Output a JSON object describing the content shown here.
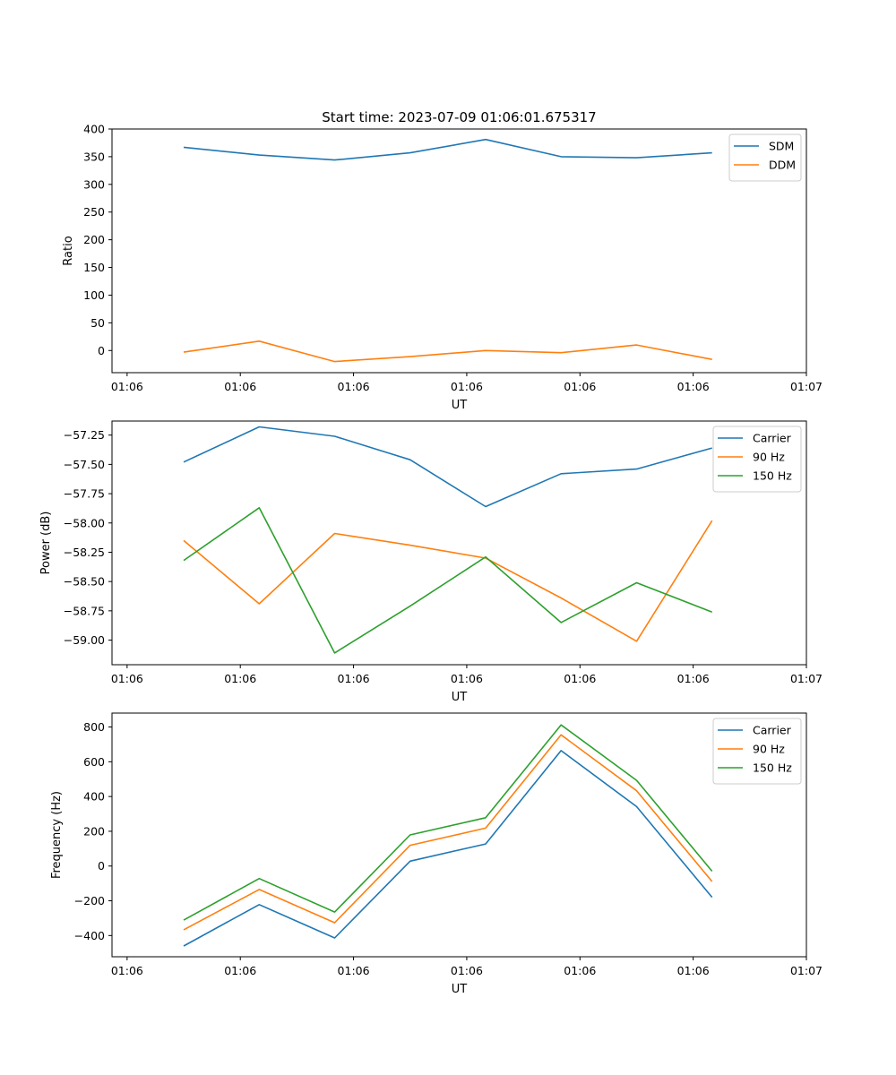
{
  "figure_title": "Start time: 2023-07-09 01:06:01.675317",
  "chart_data": [
    {
      "type": "line",
      "id": "ratio",
      "xlabel": "UT",
      "ylabel": "Ratio",
      "x": [
        0,
        1,
        2,
        3,
        4,
        5,
        6,
        7
      ],
      "x_tick_positions": [
        -0.75,
        0.75,
        2.25,
        3.75,
        5.25,
        6.75,
        8.25
      ],
      "x_tick_labels": [
        "01:06",
        "01:06",
        "01:06",
        "01:06",
        "01:06",
        "01:06",
        "01:07"
      ],
      "xlim": [
        -0.95,
        8.25
      ],
      "ylim": [
        -40,
        400
      ],
      "y_ticks": [
        0,
        50,
        100,
        150,
        200,
        250,
        300,
        350,
        400
      ],
      "y_tick_labels": [
        "0",
        "50",
        "100",
        "150",
        "200",
        "250",
        "300",
        "350",
        "400"
      ],
      "legend_position": "top-right",
      "series": [
        {
          "name": "SDM",
          "color": "#1f77b4",
          "values": [
            367,
            353,
            344,
            357,
            381,
            350,
            348,
            357
          ]
        },
        {
          "name": "DDM",
          "color": "#ff7f0e",
          "values": [
            -3,
            17,
            -20,
            -11,
            0,
            -4,
            10,
            -16
          ]
        }
      ]
    },
    {
      "type": "line",
      "id": "power",
      "xlabel": "UT",
      "ylabel": "Power (dB)",
      "x": [
        0,
        1,
        2,
        3,
        4,
        5,
        6,
        7
      ],
      "x_tick_positions": [
        -0.75,
        0.75,
        2.25,
        3.75,
        5.25,
        6.75,
        8.25
      ],
      "x_tick_labels": [
        "01:06",
        "01:06",
        "01:06",
        "01:06",
        "01:06",
        "01:06",
        "01:07"
      ],
      "xlim": [
        -0.95,
        8.25
      ],
      "ylim": [
        -59.21,
        -57.13
      ],
      "y_ticks": [
        -57.25,
        -57.5,
        -57.75,
        -58.0,
        -58.25,
        -58.5,
        -58.75,
        -59.0
      ],
      "y_tick_labels": [
        "−57.25",
        "−57.50",
        "−57.75",
        "−58.00",
        "−58.25",
        "−58.50",
        "−58.75",
        "−59.00"
      ],
      "legend_position": "top-right",
      "series": [
        {
          "name": "Carrier",
          "color": "#1f77b4",
          "values": [
            -57.48,
            -57.18,
            -57.26,
            -57.46,
            -57.86,
            -57.58,
            -57.54,
            -57.36
          ]
        },
        {
          "name": "90 Hz",
          "color": "#ff7f0e",
          "values": [
            -58.15,
            -58.69,
            -58.09,
            -58.19,
            -58.3,
            -58.64,
            -59.01,
            -57.98
          ]
        },
        {
          "name": "150 Hz",
          "color": "#2ca02c",
          "values": [
            -58.32,
            -57.87,
            -59.11,
            -58.71,
            -58.29,
            -58.85,
            -58.51,
            -58.76
          ]
        }
      ]
    },
    {
      "type": "line",
      "id": "frequency",
      "xlabel": "UT",
      "ylabel": "Frequency (Hz)",
      "x": [
        0,
        1,
        2,
        3,
        4,
        5,
        6,
        7
      ],
      "x_tick_positions": [
        -0.75,
        0.75,
        2.25,
        3.75,
        5.25,
        6.75,
        8.25
      ],
      "x_tick_labels": [
        "01:06",
        "01:06",
        "01:06",
        "01:06",
        "01:06",
        "01:06",
        "01:07"
      ],
      "xlim": [
        -0.95,
        8.25
      ],
      "ylim": [
        -522,
        880
      ],
      "y_ticks": [
        -400,
        -200,
        0,
        200,
        400,
        600,
        800
      ],
      "y_tick_labels": [
        "−400",
        "−200",
        "0",
        "200",
        "400",
        "600",
        "800"
      ],
      "legend_position": "top-right",
      "series": [
        {
          "name": "Carrier",
          "color": "#1f77b4",
          "values": [
            -460,
            -222,
            -414,
            28,
            127,
            664,
            342,
            -180
          ]
        },
        {
          "name": "90 Hz",
          "color": "#ff7f0e",
          "values": [
            -367,
            -135,
            -326,
            119,
            218,
            755,
            433,
            -89
          ]
        },
        {
          "name": "150 Hz",
          "color": "#2ca02c",
          "values": [
            -311,
            -72,
            -265,
            179,
            278,
            812,
            493,
            -30
          ]
        }
      ]
    }
  ]
}
